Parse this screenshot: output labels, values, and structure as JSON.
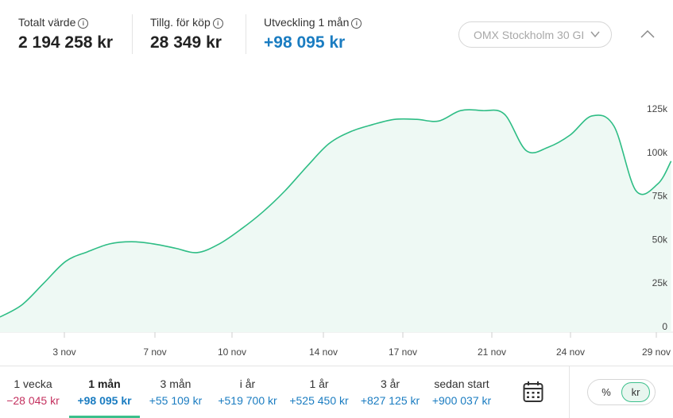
{
  "header": {
    "total_value": {
      "label": "Totalt värde",
      "value": "2 194 258 kr"
    },
    "available": {
      "label": "Tillg. för köp",
      "value": "28 349 kr"
    },
    "development": {
      "label": "Utveckling 1 mån",
      "value": "+98 095 kr"
    },
    "info_symbol": "i",
    "index_select": "OMX Stockholm 30 GI"
  },
  "chart_data": {
    "type": "area",
    "x_ticks": [
      "3 nov",
      "7 nov",
      "10 nov",
      "14 nov",
      "17 nov",
      "21 nov",
      "24 nov",
      "29 nov"
    ],
    "y_ticks": [
      "125k",
      "100k",
      "75k",
      "50k",
      "25k",
      "0"
    ],
    "ylim": [
      0,
      125000
    ],
    "y_axis_position": "right",
    "grid": false,
    "line_color": "#2ebd85",
    "fill_color": "#eef9f4",
    "series": [
      {
        "points": [
          {
            "x": 0,
            "y": 5500
          },
          {
            "x": 0.5,
            "y": 12500
          },
          {
            "x": 1.0,
            "y": 25000
          },
          {
            "x": 1.5,
            "y": 37500
          },
          {
            "x": 2.0,
            "y": 43000
          },
          {
            "x": 2.5,
            "y": 47500
          },
          {
            "x": 3.0,
            "y": 48700
          },
          {
            "x": 3.5,
            "y": 47500
          },
          {
            "x": 4.0,
            "y": 45000
          },
          {
            "x": 4.5,
            "y": 42500
          },
          {
            "x": 5.0,
            "y": 47500
          },
          {
            "x": 5.5,
            "y": 56000
          },
          {
            "x": 6.0,
            "y": 66000
          },
          {
            "x": 6.5,
            "y": 78000
          },
          {
            "x": 7.0,
            "y": 92000
          },
          {
            "x": 7.5,
            "y": 105000
          },
          {
            "x": 8.0,
            "y": 112000
          },
          {
            "x": 8.5,
            "y": 116000
          },
          {
            "x": 9.0,
            "y": 119000
          },
          {
            "x": 9.5,
            "y": 119000
          },
          {
            "x": 10.0,
            "y": 118000
          },
          {
            "x": 10.5,
            "y": 124000
          },
          {
            "x": 11.0,
            "y": 124000
          },
          {
            "x": 11.5,
            "y": 122000
          },
          {
            "x": 12.0,
            "y": 101000
          },
          {
            "x": 12.5,
            "y": 103000
          },
          {
            "x": 13.0,
            "y": 110000
          },
          {
            "x": 13.5,
            "y": 121000
          },
          {
            "x": 14.0,
            "y": 115000
          },
          {
            "x": 14.5,
            "y": 78000
          },
          {
            "x": 15.0,
            "y": 82000
          },
          {
            "x": 15.3,
            "y": 95000
          }
        ]
      }
    ]
  },
  "periods": [
    {
      "label": "1 vecka",
      "value": "−28 045 kr",
      "negative": true,
      "active": false
    },
    {
      "label": "1 mån",
      "value": "+98 095 kr",
      "negative": false,
      "active": true
    },
    {
      "label": "3 mån",
      "value": "+55 109 kr",
      "negative": false,
      "active": false
    },
    {
      "label": "i år",
      "value": "+519 700 kr",
      "negative": false,
      "active": false
    },
    {
      "label": "1 år",
      "value": "+525 450 kr",
      "negative": false,
      "active": false
    },
    {
      "label": "3 år",
      "value": "+827 125 kr",
      "negative": false,
      "active": false
    },
    {
      "label": "sedan start",
      "value": "+900 037 kr",
      "negative": false,
      "active": false
    }
  ],
  "toggle": {
    "percent": "%",
    "currency": "kr",
    "selected": "kr"
  }
}
